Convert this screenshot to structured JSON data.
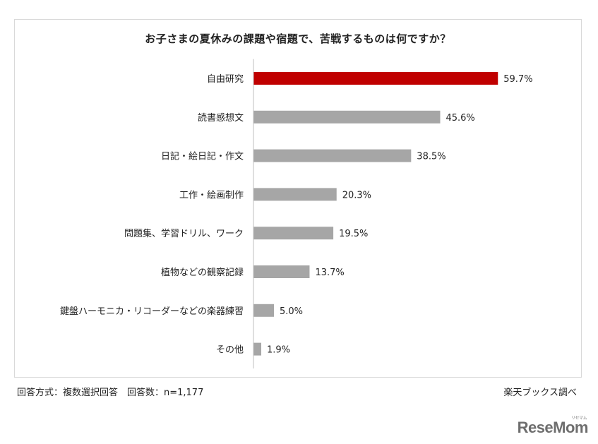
{
  "chart_data": {
    "type": "bar",
    "orientation": "horizontal",
    "title": "お子さまの夏休みの課題や宿題で、苦戦するものは何ですか？",
    "categories": [
      "自由研究",
      "読書感想文",
      "日記・絵日記・作文",
      "工作・絵画制作",
      "問題集、学習ドリル、ワーク",
      "植物などの観察記録",
      "鍵盤ハーモニカ・リコーダーなどの楽器練習",
      "その他"
    ],
    "values": [
      59.7,
      45.6,
      38.5,
      20.3,
      19.5,
      13.7,
      5.0,
      1.9
    ],
    "value_labels": [
      "59.7%",
      "45.6%",
      "38.5%",
      "20.3%",
      "19.5%",
      "13.7%",
      "5.0%",
      "1.9%"
    ],
    "unit": "%",
    "xlim": [
      0,
      100
    ],
    "grid": false,
    "legend": "none",
    "highlight_index": 0,
    "colors": {
      "highlight": "#c00000",
      "default": "#a6a6a6"
    }
  },
  "footer": {
    "note": "回答方式：複数選択回答　回答数：n=1,177",
    "source": "楽天ブックス調べ"
  },
  "watermark": {
    "text": "ReseMom",
    "sub": "リセマム"
  }
}
